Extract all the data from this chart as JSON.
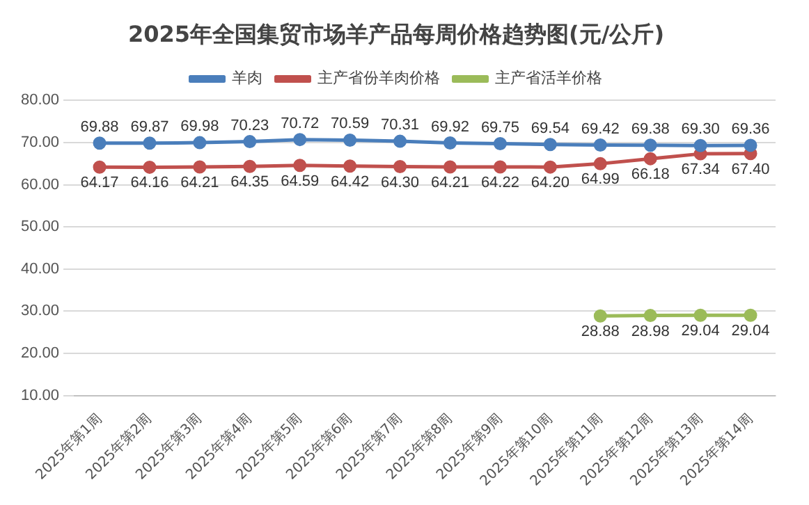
{
  "chart_data": {
    "type": "line",
    "title": "2025年全国集贸市场羊产品每周价格趋势图(元/公斤)",
    "categories": [
      "2025年第1周",
      "2025年第2周",
      "2025年第3周",
      "2025年第4周",
      "2025年第5周",
      "2025年第6周",
      "2025年第7周",
      "2025年第8周",
      "2025年第9周",
      "2025年第10周",
      "2025年第11周",
      "2025年第12周",
      "2025年第13周",
      "2025年第14周"
    ],
    "series": [
      {
        "name": "羊肉",
        "color": "#4a7ebb",
        "values": [
          69.88,
          69.87,
          69.98,
          70.23,
          70.72,
          70.59,
          70.31,
          69.92,
          69.75,
          69.54,
          69.42,
          69.38,
          69.3,
          69.36
        ],
        "value_labels": [
          "69.88",
          "69.87",
          "69.98",
          "70.23",
          "70.72",
          "70.59",
          "70.31",
          "69.92",
          "69.75",
          "69.54",
          "69.42",
          "69.38",
          "69.30",
          "69.36"
        ]
      },
      {
        "name": "主产省份羊肉价格",
        "color": "#c0504d",
        "values": [
          64.17,
          64.16,
          64.21,
          64.35,
          64.59,
          64.42,
          64.3,
          64.21,
          64.22,
          64.2,
          64.99,
          66.18,
          67.34,
          67.4
        ],
        "value_labels": [
          "64.17",
          "64.16",
          "64.21",
          "64.35",
          "64.59",
          "64.42",
          "64.30",
          "64.21",
          "64.22",
          "64.20",
          "64.99",
          "66.18",
          "67.34",
          "67.40"
        ]
      },
      {
        "name": "主产省活羊价格",
        "color": "#9bbb59",
        "values": [
          null,
          null,
          null,
          null,
          null,
          null,
          null,
          null,
          null,
          null,
          28.88,
          28.98,
          29.04,
          29.04
        ],
        "value_labels": [
          null,
          null,
          null,
          null,
          null,
          null,
          null,
          null,
          null,
          null,
          "28.88",
          "28.98",
          "29.04",
          "29.04"
        ]
      }
    ],
    "ylim": [
      10,
      80
    ],
    "yticks": [
      {
        "value": 10,
        "label": "10.00"
      },
      {
        "value": 20,
        "label": "20.00"
      },
      {
        "value": 30,
        "label": "30.00"
      },
      {
        "value": 40,
        "label": "40.00"
      },
      {
        "value": 50,
        "label": "50.00"
      },
      {
        "value": 60,
        "label": "60.00"
      },
      {
        "value": 70,
        "label": "70.00"
      },
      {
        "value": 80,
        "label": "80.00"
      }
    ],
    "grid": "y",
    "legend": "top",
    "marker": "circle",
    "line_style": "solid"
  }
}
